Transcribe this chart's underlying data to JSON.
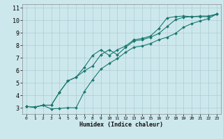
{
  "xlabel": "Humidex (Indice chaleur)",
  "bg_color": "#cde8ec",
  "grid_color": "#aacdd4",
  "line_color": "#1a7870",
  "xlim": [
    -0.5,
    23.5
  ],
  "ylim": [
    2.5,
    11.3
  ],
  "xticks": [
    0,
    1,
    2,
    3,
    4,
    5,
    6,
    7,
    8,
    9,
    10,
    11,
    12,
    13,
    14,
    15,
    16,
    17,
    18,
    19,
    20,
    21,
    22,
    23
  ],
  "yticks": [
    3,
    4,
    5,
    6,
    7,
    8,
    9,
    10,
    11
  ],
  "line_min": {
    "x": [
      0,
      1,
      2,
      3,
      4,
      5,
      6,
      7,
      8,
      9,
      10,
      11,
      12,
      13,
      14,
      15,
      16,
      17,
      18,
      19,
      20,
      21,
      22,
      23
    ],
    "y": [
      3.1,
      3.05,
      3.2,
      2.9,
      2.95,
      3.0,
      3.0,
      4.3,
      5.25,
      6.1,
      6.55,
      6.95,
      7.45,
      7.85,
      7.95,
      8.15,
      8.45,
      8.65,
      8.95,
      9.45,
      9.75,
      9.95,
      10.15,
      10.5
    ]
  },
  "line_mid": {
    "x": [
      0,
      1,
      2,
      3,
      4,
      5,
      6,
      7,
      8,
      9,
      10,
      11,
      12,
      13,
      14,
      15,
      16,
      17,
      18,
      19,
      20,
      21,
      22,
      23
    ],
    "y": [
      3.1,
      3.05,
      3.2,
      3.2,
      4.25,
      5.15,
      5.45,
      5.95,
      6.35,
      7.25,
      7.65,
      7.25,
      7.85,
      8.35,
      8.45,
      8.65,
      8.95,
      9.5,
      10.05,
      10.25,
      10.3,
      10.3,
      10.3,
      10.5
    ]
  },
  "line_max": {
    "x": [
      0,
      1,
      2,
      3,
      4,
      5,
      6,
      7,
      8,
      9,
      10,
      11,
      12,
      13,
      14,
      15,
      16,
      17,
      18,
      19,
      20,
      21,
      22,
      23
    ],
    "y": [
      3.1,
      3.05,
      3.2,
      3.2,
      4.25,
      5.15,
      5.45,
      6.25,
      7.2,
      7.65,
      7.2,
      7.65,
      7.95,
      8.45,
      8.55,
      8.75,
      9.35,
      10.2,
      10.3,
      10.35,
      10.3,
      10.35,
      10.35,
      10.5
    ]
  },
  "xlabel_fontsize": 6.0,
  "tick_fontsize_x": 4.5,
  "tick_fontsize_y": 6.0
}
